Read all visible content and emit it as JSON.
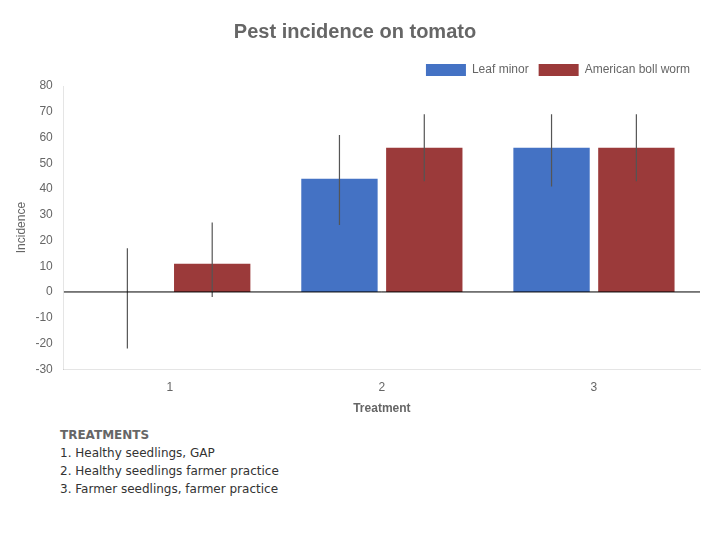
{
  "chart_data": {
    "type": "bar",
    "title": "Pest incidence on tomato",
    "categories": [
      "1",
      "2",
      "3"
    ],
    "xlabel": "Treatment",
    "ylabel": "Incidence",
    "series": [
      {
        "name": "Leaf minor",
        "color": "#4472C4",
        "values": [
          0,
          44,
          56
        ],
        "errors_neg": [
          22,
          18,
          15
        ],
        "errors_pos": [
          17,
          17,
          13
        ]
      },
      {
        "name": "American boll worm",
        "color": "#9B3A3A",
        "values": [
          11,
          56,
          56
        ],
        "errors_neg": [
          13,
          13,
          13
        ],
        "errors_pos": [
          16,
          13,
          13
        ]
      }
    ],
    "ylim": [
      -30,
      80
    ],
    "yticks": [
      -30,
      -20,
      -10,
      0,
      10,
      20,
      30,
      40,
      50,
      60,
      70,
      80
    ],
    "grid": false,
    "legend": "upper right",
    "annotations": [
      "TREATMENTS",
      "1. Healthy seedlings, GAP",
      "2. Healthy seedlings farmer practice",
      "3. Farmer seedlings, farmer practice"
    ]
  }
}
